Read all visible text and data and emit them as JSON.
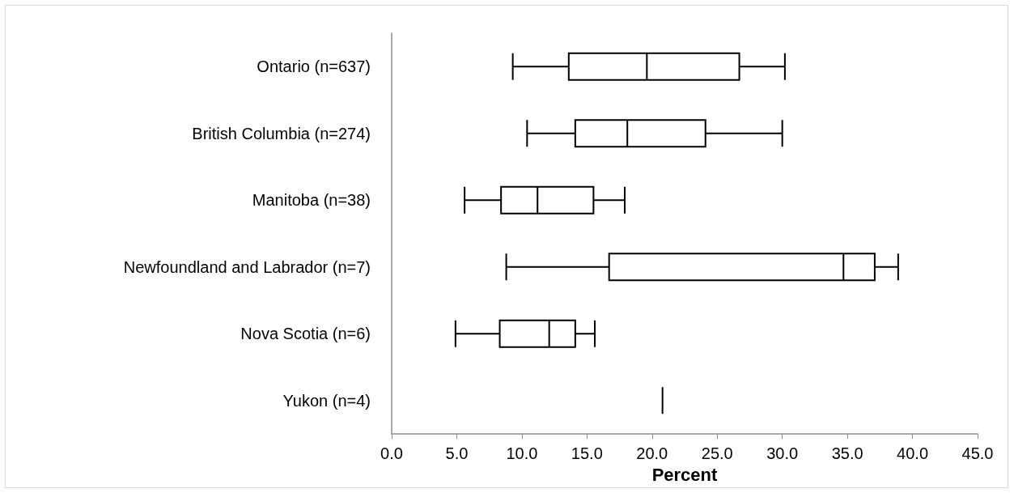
{
  "chart_data": {
    "type": "box",
    "orientation": "horizontal",
    "xlabel": "Percent",
    "categories": [
      "Ontario (n=637)",
      "British Columbia (n=274)",
      "Manitoba (n=38)",
      "Newfoundland and Labrador (n=7)",
      "Nova Scotia (n=6)",
      "Yukon (n=4)"
    ],
    "boxes": [
      {
        "low": 9.3,
        "q1": 13.6,
        "median": 19.6,
        "q3": 26.7,
        "high": 30.2
      },
      {
        "low": 10.4,
        "q1": 14.1,
        "median": 18.1,
        "q3": 24.1,
        "high": 30.0
      },
      {
        "low": 5.6,
        "q1": 8.4,
        "median": 11.2,
        "q3": 15.5,
        "high": 17.9
      },
      {
        "low": 8.8,
        "q1": 16.7,
        "median": 34.7,
        "q3": 37.1,
        "high": 38.9
      },
      {
        "low": 4.9,
        "q1": 8.3,
        "median": 12.1,
        "q3": 14.1,
        "high": 15.6
      },
      {
        "low": 20.8,
        "q1": 20.8,
        "median": 20.8,
        "q3": 20.8,
        "high": 20.8
      }
    ],
    "color": "#000000",
    "xlim": [
      0,
      45
    ],
    "xticks": [
      {
        "value": 0,
        "label": "0.0"
      },
      {
        "value": 5,
        "label": "5.0"
      },
      {
        "value": 10,
        "label": "10.0"
      },
      {
        "value": 15,
        "label": "15.0"
      },
      {
        "value": 20,
        "label": "20.0"
      },
      {
        "value": 25,
        "label": "25.0"
      },
      {
        "value": 30,
        "label": "30.0"
      },
      {
        "value": 35,
        "label": "35.0"
      },
      {
        "value": 40,
        "label": "40.0"
      },
      {
        "value": 45,
        "label": "45.0"
      }
    ],
    "grid": false
  }
}
